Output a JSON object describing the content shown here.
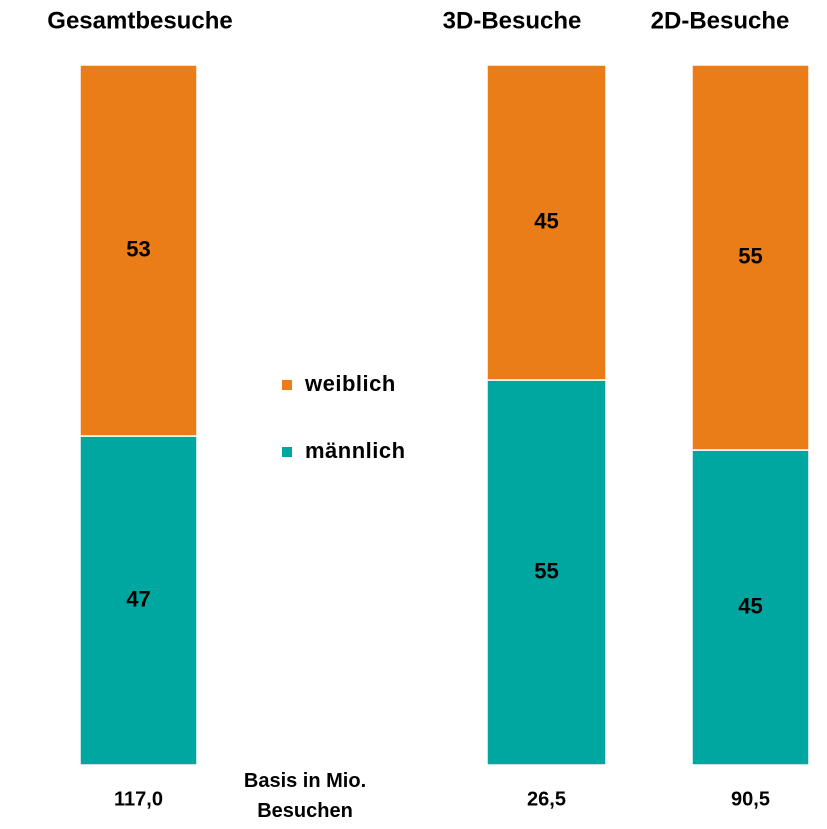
{
  "chart_data": {
    "type": "bar",
    "stacked": true,
    "categories": [
      "Gesamtbesuche",
      "3D-Besuche",
      "2D-Besuche"
    ],
    "series": [
      {
        "name": "männlich",
        "color": "#00a6a0",
        "values": [
          47,
          55,
          45
        ]
      },
      {
        "name": "weiblich",
        "color": "#ea7d17",
        "values": [
          53,
          45,
          55
        ]
      }
    ],
    "ylim": [
      0,
      100
    ],
    "base_title": "Basis in Mio. Besuchen",
    "base_values": [
      117.0,
      26.5,
      90.5
    ],
    "base_labels": [
      "117,0",
      "26,5",
      "90,5"
    ]
  }
}
